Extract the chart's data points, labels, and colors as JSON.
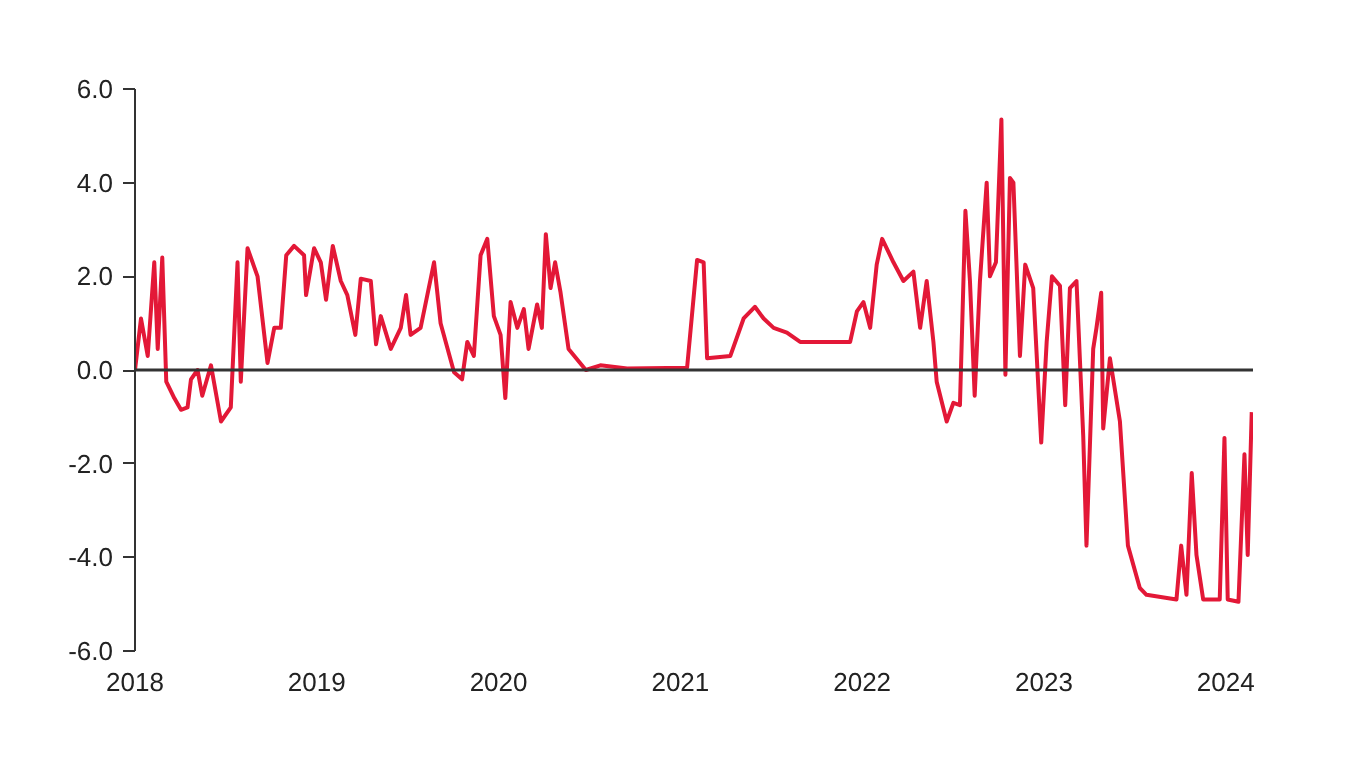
{
  "chart_data": {
    "type": "line",
    "xlim": [
      2018,
      2024.15
    ],
    "xticks": [
      2018,
      2019,
      2020,
      2021,
      2022,
      2023,
      2024
    ],
    "ylim": [
      -6,
      6
    ],
    "yticks": [
      {
        "value": -6,
        "label": "-6.0"
      },
      {
        "value": -4,
        "label": "-4.0"
      },
      {
        "value": -2,
        "label": "-2.0"
      },
      {
        "value": 0,
        "label": "0.0"
      },
      {
        "value": 2,
        "label": "2.0"
      },
      {
        "value": 4,
        "label": "4.0"
      },
      {
        "value": 6,
        "label": "6.0"
      }
    ],
    "grid": false,
    "marker": "none",
    "line_style": "solid",
    "ref_lines": [
      {
        "axis": "y",
        "value": 0,
        "color": "#333333"
      }
    ],
    "series": [
      {
        "color": "#e31837",
        "x": [
          2018.0,
          2018.033,
          2018.07,
          2018.106,
          2018.125,
          2018.15,
          2018.172,
          2018.216,
          2018.253,
          2018.289,
          2018.308,
          2018.344,
          2018.37,
          2018.418,
          2018.473,
          2018.527,
          2018.564,
          2018.582,
          2018.619,
          2018.674,
          2018.729,
          2018.766,
          2018.802,
          2018.832,
          2018.875,
          2018.93,
          2018.941,
          2018.985,
          2019.022,
          2019.051,
          2019.088,
          2019.132,
          2019.168,
          2019.212,
          2019.242,
          2019.297,
          2019.326,
          2019.352,
          2019.407,
          2019.462,
          2019.491,
          2019.516,
          2019.571,
          2019.645,
          2019.681,
          2019.755,
          2019.799,
          2019.828,
          2019.864,
          2019.901,
          2019.938,
          2019.974,
          2020.011,
          2020.037,
          2020.066,
          2020.103,
          2020.139,
          2020.165,
          2020.212,
          2020.238,
          2020.26,
          2020.286,
          2020.311,
          2020.341,
          2020.385,
          2020.48,
          2020.56,
          2020.707,
          2021.037,
          2021.092,
          2021.128,
          2021.147,
          2021.275,
          2021.348,
          2021.41,
          2021.458,
          2021.513,
          2021.586,
          2021.659,
          2021.934,
          2021.971,
          2022.007,
          2022.044,
          2022.08,
          2022.11,
          2022.172,
          2022.227,
          2022.282,
          2022.319,
          2022.355,
          2022.392,
          2022.41,
          2022.465,
          2022.502,
          2022.538,
          2022.568,
          2022.593,
          2022.619,
          2022.648,
          2022.685,
          2022.703,
          2022.736,
          2022.766,
          2022.788,
          2022.813,
          2022.832,
          2022.868,
          2022.897,
          2022.941,
          2022.985,
          2023.015,
          2023.044,
          2023.088,
          2023.117,
          2023.143,
          2023.179,
          2023.216,
          2023.234,
          2023.271,
          2023.289,
          2023.315,
          2023.326,
          2023.363,
          2023.418,
          2023.462,
          2023.527,
          2023.564,
          2023.729,
          2023.755,
          2023.784,
          2023.813,
          2023.839,
          2023.876,
          2023.967,
          2023.993,
          2024.011,
          2024.07,
          2024.103,
          2024.121,
          2024.143
        ],
        "values": [
          0.0,
          1.1,
          0.3,
          2.3,
          0.45,
          2.4,
          -0.25,
          -0.6,
          -0.85,
          -0.8,
          -0.2,
          0.0,
          -0.55,
          0.1,
          -1.1,
          -0.8,
          2.3,
          -0.25,
          2.6,
          2.0,
          0.15,
          0.9,
          0.9,
          2.45,
          2.65,
          2.45,
          1.6,
          2.6,
          2.3,
          1.5,
          2.65,
          1.9,
          1.6,
          0.75,
          1.95,
          1.9,
          0.55,
          1.15,
          0.45,
          0.9,
          1.6,
          0.75,
          0.9,
          2.3,
          1.0,
          -0.05,
          -0.2,
          0.6,
          0.3,
          2.45,
          2.8,
          1.15,
          0.75,
          -0.6,
          1.45,
          0.9,
          1.3,
          0.45,
          1.4,
          0.9,
          2.9,
          1.75,
          2.3,
          1.65,
          0.45,
          0.0,
          0.1,
          0.03,
          0.05,
          2.35,
          2.3,
          0.25,
          0.3,
          1.1,
          1.35,
          1.1,
          0.9,
          0.8,
          0.6,
          0.6,
          1.25,
          1.45,
          0.9,
          2.25,
          2.8,
          2.3,
          1.9,
          2.1,
          0.9,
          1.9,
          0.6,
          -0.25,
          -1.1,
          -0.7,
          -0.75,
          3.4,
          1.9,
          -0.55,
          1.9,
          4.0,
          2.0,
          2.3,
          5.35,
          -0.1,
          4.1,
          4.0,
          0.3,
          2.25,
          1.75,
          -1.55,
          0.6,
          2.0,
          1.8,
          -0.75,
          1.75,
          1.9,
          -1.4,
          -3.75,
          0.45,
          0.9,
          1.65,
          -1.25,
          0.25,
          -1.1,
          -3.75,
          -4.65,
          -4.8,
          -4.9,
          -3.75,
          -4.8,
          -2.2,
          -3.95,
          -4.9,
          -4.9,
          -1.45,
          -4.9,
          -4.95,
          -1.8,
          -3.95,
          -0.9
        ]
      }
    ]
  }
}
